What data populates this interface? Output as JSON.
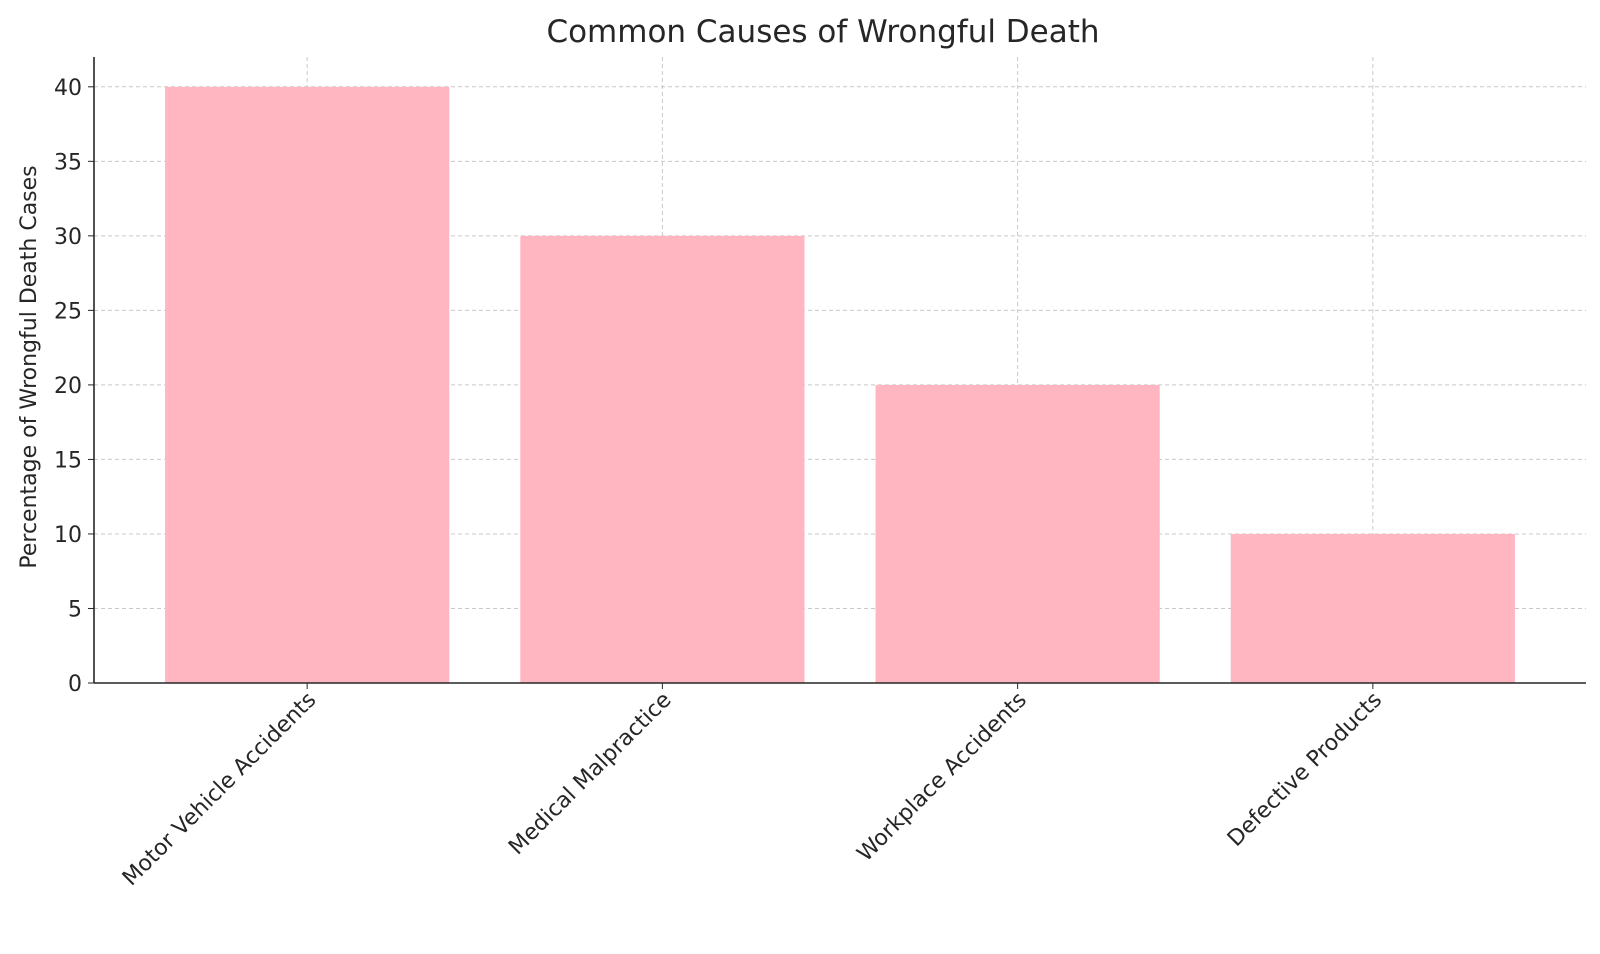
{
  "chart_data": {
    "type": "bar",
    "title": "Common Causes of Wrongful Death",
    "xlabel": "",
    "ylabel": "Percentage of Wrongful Death Cases",
    "categories": [
      "Motor Vehicle Accidents",
      "Medical Malpractice",
      "Workplace Accidents",
      "Defective Products"
    ],
    "values": [
      40,
      30,
      20,
      10
    ],
    "ylim": [
      0,
      42
    ],
    "yticks": [
      "0",
      "5",
      "10",
      "15",
      "20",
      "25",
      "30",
      "35",
      "40"
    ],
    "grid": true,
    "bar_color": "#ffb6c1"
  }
}
